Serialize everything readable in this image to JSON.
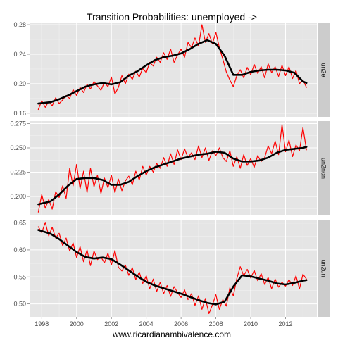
{
  "chart_data": {
    "type": "line",
    "title": "Transition Probabilities: unemployed ->",
    "xlabel": "www.ricardianambivalence.com",
    "x_ticks": [
      "1998",
      "2000",
      "2002",
      "2004",
      "2006",
      "2008",
      "2010",
      "2012"
    ],
    "xlim": [
      1997.3,
      2013.8
    ],
    "colors": {
      "raw": "#ff0000",
      "smooth": "#000000",
      "panel_bg": "#e5e5e5",
      "strip_bg": "#cccccc",
      "grid": "#ffffff"
    },
    "panels": [
      {
        "label": "un2e",
        "ylim": [
          0.155,
          0.282
        ],
        "y_ticks": [
          0.16,
          0.2,
          0.24,
          0.28
        ],
        "y_tick_labels": [
          "0.16",
          "0.20",
          "0.24",
          "0.28"
        ],
        "series": [
          {
            "style": "raw",
            "x": [
              1997.8,
              1998.0,
              1998.2,
              1998.4,
              1998.6,
              1998.8,
              1999.0,
              1999.2,
              1999.4,
              1999.6,
              1999.8,
              2000.0,
              2000.2,
              2000.4,
              2000.6,
              2000.8,
              2001.0,
              2001.2,
              2001.4,
              2001.6,
              2001.8,
              2002.0,
              2002.2,
              2002.4,
              2002.6,
              2002.8,
              2003.0,
              2003.2,
              2003.4,
              2003.6,
              2003.8,
              2004.0,
              2004.2,
              2004.4,
              2004.6,
              2004.8,
              2005.0,
              2005.2,
              2005.4,
              2005.6,
              2005.8,
              2006.0,
              2006.2,
              2006.4,
              2006.6,
              2006.8,
              2007.0,
              2007.2,
              2007.4,
              2007.6,
              2007.8,
              2008.0,
              2008.2,
              2008.4,
              2008.6,
              2008.8,
              2009.0,
              2009.2,
              2009.4,
              2009.6,
              2009.8,
              2010.0,
              2010.2,
              2010.4,
              2010.6,
              2010.8,
              2011.0,
              2011.2,
              2011.4,
              2011.6,
              2011.8,
              2012.0,
              2012.2,
              2012.4,
              2012.6,
              2012.8,
              2013.0,
              2013.2
            ],
            "y": [
              0.165,
              0.177,
              0.168,
              0.176,
              0.17,
              0.181,
              0.173,
              0.178,
              0.184,
              0.18,
              0.192,
              0.184,
              0.195,
              0.188,
              0.199,
              0.193,
              0.203,
              0.197,
              0.191,
              0.202,
              0.196,
              0.209,
              0.186,
              0.195,
              0.211,
              0.2,
              0.213,
              0.206,
              0.217,
              0.209,
              0.221,
              0.215,
              0.229,
              0.224,
              0.236,
              0.229,
              0.242,
              0.233,
              0.247,
              0.229,
              0.239,
              0.247,
              0.236,
              0.256,
              0.249,
              0.262,
              0.251,
              0.28,
              0.256,
              0.268,
              0.254,
              0.27,
              0.249,
              0.233,
              0.216,
              0.205,
              0.196,
              0.211,
              0.219,
              0.208,
              0.222,
              0.212,
              0.226,
              0.214,
              0.223,
              0.208,
              0.227,
              0.215,
              0.223,
              0.21,
              0.225,
              0.211,
              0.223,
              0.207,
              0.218,
              0.2,
              0.205,
              0.195
            ]
          },
          {
            "style": "smooth",
            "x": [
              1997.8,
              1998.5,
              1999.0,
              1999.5,
              2000.0,
              2000.5,
              2001.0,
              2001.5,
              2002.0,
              2002.5,
              2003.0,
              2003.5,
              2004.0,
              2004.5,
              2005.0,
              2005.5,
              2006.0,
              2006.5,
              2007.0,
              2007.5,
              2008.0,
              2008.5,
              2009.0,
              2009.5,
              2010.0,
              2010.5,
              2011.0,
              2011.5,
              2012.0,
              2012.5,
              2013.0,
              2013.2
            ],
            "y": [
              0.173,
              0.175,
              0.179,
              0.184,
              0.19,
              0.196,
              0.199,
              0.201,
              0.199,
              0.202,
              0.211,
              0.217,
              0.225,
              0.232,
              0.236,
              0.238,
              0.241,
              0.247,
              0.254,
              0.259,
              0.254,
              0.238,
              0.212,
              0.212,
              0.216,
              0.218,
              0.219,
              0.219,
              0.218,
              0.215,
              0.203,
              0.201
            ]
          }
        ]
      },
      {
        "label": "un2non",
        "ylim": [
          0.1805,
          0.2775
        ],
        "y_ticks": [
          0.2,
          0.225,
          0.25,
          0.275
        ],
        "y_tick_labels": [
          "0.200",
          "0.225",
          "0.250",
          "0.275"
        ],
        "series": [
          {
            "style": "raw",
            "x": [
              1997.8,
              1998.0,
              1998.2,
              1998.4,
              1998.6,
              1998.8,
              1999.0,
              1999.2,
              1999.4,
              1999.6,
              1999.8,
              2000.0,
              2000.2,
              2000.4,
              2000.6,
              2000.8,
              2001.0,
              2001.2,
              2001.4,
              2001.6,
              2001.8,
              2002.0,
              2002.2,
              2002.4,
              2002.6,
              2002.8,
              2003.0,
              2003.2,
              2003.4,
              2003.6,
              2003.8,
              2004.0,
              2004.2,
              2004.4,
              2004.6,
              2004.8,
              2005.0,
              2005.2,
              2005.4,
              2005.6,
              2005.8,
              2006.0,
              2006.2,
              2006.4,
              2006.6,
              2006.8,
              2007.0,
              2007.2,
              2007.4,
              2007.6,
              2007.8,
              2008.0,
              2008.2,
              2008.4,
              2008.6,
              2008.8,
              2009.0,
              2009.2,
              2009.4,
              2009.6,
              2009.8,
              2010.0,
              2010.2,
              2010.4,
              2010.6,
              2010.8,
              2011.0,
              2011.2,
              2011.4,
              2011.6,
              2011.8,
              2012.0,
              2012.2,
              2012.4,
              2012.6,
              2012.8,
              2013.0,
              2013.2
            ],
            "y": [
              0.184,
              0.202,
              0.188,
              0.197,
              0.187,
              0.205,
              0.199,
              0.211,
              0.198,
              0.229,
              0.211,
              0.233,
              0.208,
              0.226,
              0.204,
              0.229,
              0.21,
              0.222,
              0.203,
              0.219,
              0.209,
              0.222,
              0.204,
              0.218,
              0.206,
              0.216,
              0.221,
              0.212,
              0.226,
              0.217,
              0.231,
              0.222,
              0.231,
              0.225,
              0.234,
              0.229,
              0.24,
              0.231,
              0.244,
              0.233,
              0.248,
              0.238,
              0.249,
              0.24,
              0.245,
              0.238,
              0.252,
              0.24,
              0.25,
              0.237,
              0.247,
              0.242,
              0.25,
              0.24,
              0.236,
              0.247,
              0.231,
              0.241,
              0.229,
              0.243,
              0.232,
              0.239,
              0.23,
              0.242,
              0.236,
              0.24,
              0.252,
              0.244,
              0.257,
              0.243,
              0.274,
              0.246,
              0.258,
              0.241,
              0.253,
              0.247,
              0.271,
              0.248
            ]
          },
          {
            "style": "smooth",
            "x": [
              1997.8,
              1998.5,
              1999.0,
              1999.5,
              2000.0,
              2000.5,
              2001.0,
              2001.5,
              2002.0,
              2002.5,
              2003.0,
              2003.5,
              2004.0,
              2004.5,
              2005.0,
              2005.5,
              2006.0,
              2006.5,
              2007.0,
              2007.5,
              2008.0,
              2008.5,
              2009.0,
              2009.5,
              2010.0,
              2010.5,
              2011.0,
              2011.5,
              2012.0,
              2012.5,
              2013.0,
              2013.2
            ],
            "y": [
              0.192,
              0.195,
              0.202,
              0.211,
              0.218,
              0.219,
              0.219,
              0.217,
              0.212,
              0.212,
              0.215,
              0.221,
              0.226,
              0.23,
              0.233,
              0.236,
              0.239,
              0.241,
              0.243,
              0.244,
              0.246,
              0.245,
              0.239,
              0.236,
              0.236,
              0.237,
              0.24,
              0.245,
              0.248,
              0.249,
              0.25,
              0.251
            ]
          }
        ]
      },
      {
        "label": "un2un",
        "ylim": [
          0.476,
          0.656
        ],
        "y_ticks": [
          0.5,
          0.55,
          0.6,
          0.65
        ],
        "y_tick_labels": [
          "0.50",
          "0.55",
          "0.60",
          "0.65"
        ],
        "series": [
          {
            "style": "raw",
            "x": [
              1997.8,
              1998.0,
              1998.2,
              1998.4,
              1998.6,
              1998.8,
              1999.0,
              1999.2,
              1999.4,
              1999.6,
              1999.8,
              2000.0,
              2000.2,
              2000.4,
              2000.6,
              2000.8,
              2001.0,
              2001.2,
              2001.4,
              2001.6,
              2001.8,
              2002.0,
              2002.2,
              2002.4,
              2002.6,
              2002.8,
              2003.0,
              2003.2,
              2003.4,
              2003.6,
              2003.8,
              2004.0,
              2004.2,
              2004.4,
              2004.6,
              2004.8,
              2005.0,
              2005.2,
              2005.4,
              2005.6,
              2005.8,
              2006.0,
              2006.2,
              2006.4,
              2006.6,
              2006.8,
              2007.0,
              2007.2,
              2007.4,
              2007.6,
              2007.8,
              2008.0,
              2008.2,
              2008.4,
              2008.6,
              2008.8,
              2009.0,
              2009.2,
              2009.4,
              2009.6,
              2009.8,
              2010.0,
              2010.2,
              2010.4,
              2010.6,
              2010.8,
              2011.0,
              2011.2,
              2011.4,
              2011.6,
              2011.8,
              2012.0,
              2012.2,
              2012.4,
              2012.6,
              2012.8,
              2013.0,
              2013.2
            ],
            "y": [
              0.643,
              0.632,
              0.651,
              0.626,
              0.642,
              0.622,
              0.631,
              0.608,
              0.622,
              0.598,
              0.613,
              0.586,
              0.606,
              0.578,
              0.6,
              0.571,
              0.598,
              0.582,
              0.587,
              0.576,
              0.594,
              0.572,
              0.599,
              0.568,
              0.561,
              0.572,
              0.553,
              0.567,
              0.545,
              0.559,
              0.538,
              0.552,
              0.528,
              0.546,
              0.523,
              0.54,
              0.519,
              0.534,
              0.514,
              0.532,
              0.521,
              0.512,
              0.526,
              0.508,
              0.519,
              0.497,
              0.515,
              0.49,
              0.51,
              0.482,
              0.498,
              0.517,
              0.49,
              0.508,
              0.496,
              0.53,
              0.515,
              0.547,
              0.569,
              0.552,
              0.564,
              0.548,
              0.562,
              0.543,
              0.556,
              0.536,
              0.549,
              0.528,
              0.546,
              0.531,
              0.54,
              0.533,
              0.545,
              0.534,
              0.552,
              0.528,
              0.555,
              0.546
            ]
          },
          {
            "style": "smooth",
            "x": [
              1997.8,
              1998.5,
              1999.0,
              1999.5,
              2000.0,
              2000.5,
              2001.0,
              2001.5,
              2002.0,
              2002.5,
              2003.0,
              2003.5,
              2004.0,
              2004.5,
              2005.0,
              2005.5,
              2006.0,
              2006.5,
              2007.0,
              2007.5,
              2008.0,
              2008.5,
              2009.0,
              2009.5,
              2010.0,
              2010.5,
              2011.0,
              2011.5,
              2012.0,
              2012.5,
              2013.0,
              2013.2
            ],
            "y": [
              0.637,
              0.63,
              0.62,
              0.608,
              0.596,
              0.587,
              0.584,
              0.586,
              0.583,
              0.573,
              0.562,
              0.551,
              0.541,
              0.534,
              0.529,
              0.524,
              0.519,
              0.513,
              0.507,
              0.502,
              0.499,
              0.504,
              0.532,
              0.553,
              0.551,
              0.547,
              0.543,
              0.538,
              0.536,
              0.539,
              0.543,
              0.544
            ]
          }
        ]
      }
    ]
  }
}
